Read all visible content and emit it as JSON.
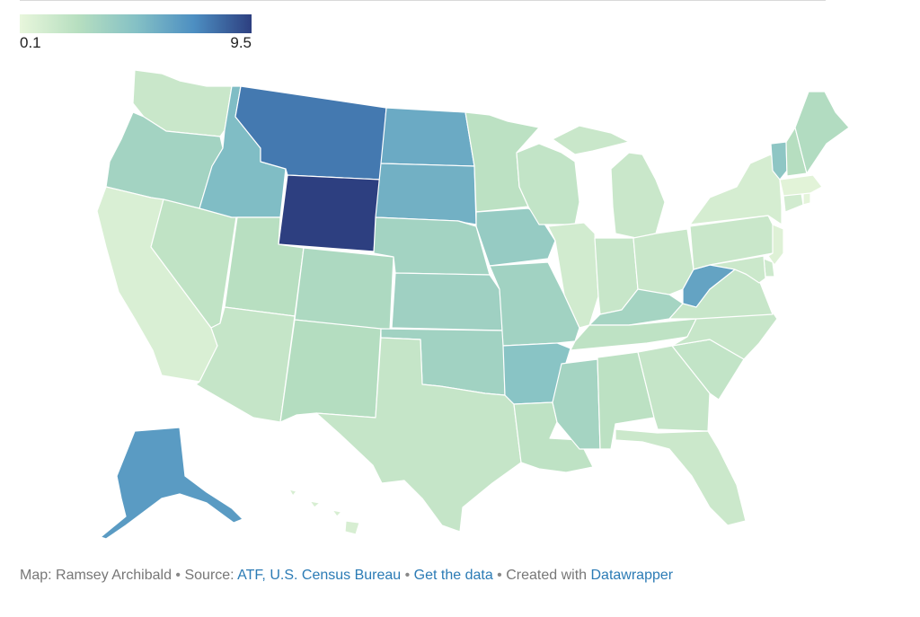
{
  "legend": {
    "min_label": "0.1",
    "max_label": "9.5",
    "min": 0.1,
    "max": 9.5,
    "colors": [
      "#e8f6dc",
      "#b7dfc0",
      "#85c1c5",
      "#4d8fc2",
      "#2d3f80"
    ]
  },
  "states": [
    {
      "code": "WA",
      "value": 1.6
    },
    {
      "code": "OR",
      "value": 3.4
    },
    {
      "code": "CA",
      "value": 0.8
    },
    {
      "code": "NV",
      "value": 2.0
    },
    {
      "code": "ID",
      "value": 5.0
    },
    {
      "code": "MT",
      "value": 7.8
    },
    {
      "code": "WY",
      "value": 9.5
    },
    {
      "code": "UT",
      "value": 2.4
    },
    {
      "code": "AZ",
      "value": 1.8
    },
    {
      "code": "CO",
      "value": 2.9
    },
    {
      "code": "NM",
      "value": 2.6
    },
    {
      "code": "ND",
      "value": 5.9
    },
    {
      "code": "SD",
      "value": 5.6
    },
    {
      "code": "NE",
      "value": 3.4
    },
    {
      "code": "KS",
      "value": 3.6
    },
    {
      "code": "OK",
      "value": 3.5
    },
    {
      "code": "TX",
      "value": 1.8
    },
    {
      "code": "MN",
      "value": 2.2
    },
    {
      "code": "IA",
      "value": 4.0
    },
    {
      "code": "MO",
      "value": 3.5
    },
    {
      "code": "AR",
      "value": 4.6
    },
    {
      "code": "LA",
      "value": 2.1
    },
    {
      "code": "WI",
      "value": 1.9
    },
    {
      "code": "IL",
      "value": 1.2
    },
    {
      "code": "MI",
      "value": 1.6
    },
    {
      "code": "IN",
      "value": 1.7
    },
    {
      "code": "OH",
      "value": 1.6
    },
    {
      "code": "KY",
      "value": 3.3
    },
    {
      "code": "TN",
      "value": 2.1
    },
    {
      "code": "MS",
      "value": 3.3
    },
    {
      "code": "AL",
      "value": 2.2
    },
    {
      "code": "GA",
      "value": 1.8
    },
    {
      "code": "FL",
      "value": 1.5
    },
    {
      "code": "SC",
      "value": 1.9
    },
    {
      "code": "NC",
      "value": 1.7
    },
    {
      "code": "VA",
      "value": 1.7
    },
    {
      "code": "WV",
      "value": 6.2
    },
    {
      "code": "PA",
      "value": 1.6
    },
    {
      "code": "NY",
      "value": 1.0
    },
    {
      "code": "NJ",
      "value": 0.6
    },
    {
      "code": "DE",
      "value": 1.4
    },
    {
      "code": "MD",
      "value": 1.5
    },
    {
      "code": "CT",
      "value": 1.2
    },
    {
      "code": "RI",
      "value": 0.3
    },
    {
      "code": "MA",
      "value": 0.4
    },
    {
      "code": "VT",
      "value": 4.4
    },
    {
      "code": "NH",
      "value": 2.5
    },
    {
      "code": "ME",
      "value": 2.7
    },
    {
      "code": "AK",
      "value": 6.6
    },
    {
      "code": "HI",
      "value": 0.9
    }
  ],
  "footer": {
    "map_by": "Map: Ramsey Archibald",
    "sep1": " • ",
    "source_label": "Source: ",
    "source_link": "ATF, U.S. Census Bureau",
    "sep2": " • ",
    "get_data": "Get the data",
    "sep3": " • ",
    "created_with": "Created with ",
    "tool_link": "Datawrapper"
  }
}
